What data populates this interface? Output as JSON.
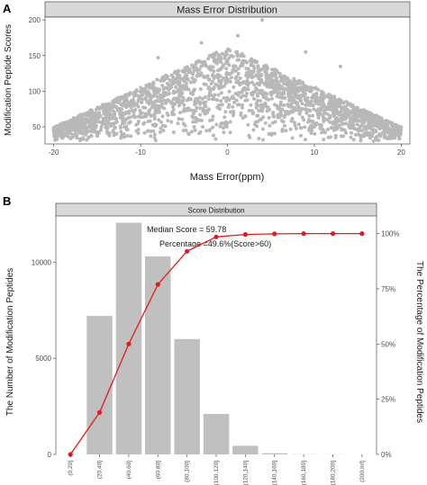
{
  "panels": [
    {
      "letter": "A",
      "strip_title": "Mass Error Distribution"
    },
    {
      "letter": "B",
      "strip_title": "Score Distribution",
      "annotations": [
        "Median Score = 59.78",
        "Percentage =49.6%(Score>60)"
      ]
    }
  ],
  "colors": {
    "points": "#b8b8b8",
    "bars": "#c0c0c0",
    "line": "#e41a1c",
    "strip": "#d9d9d9"
  },
  "chart_data": [
    {
      "type": "scatter",
      "title": "Mass Error Distribution",
      "xlabel": "Mass Error(ppm)",
      "ylabel": "Modification Peptide Scores",
      "xlim": [
        -21,
        21
      ],
      "ylim": [
        26,
        204
      ],
      "xticks": [
        -20,
        -10,
        0,
        10,
        20
      ],
      "yticks": [
        50,
        100,
        150,
        200
      ],
      "grid": false,
      "distribution": {
        "x_range": [
          -20,
          20
        ],
        "y_min": 30,
        "y_max": 200,
        "shape": "triangular envelope, highest scores near 0 ppm",
        "outlier_points": [
          [
            4,
            200
          ],
          [
            1.2,
            178
          ],
          [
            -3,
            168
          ],
          [
            9,
            155
          ],
          [
            -8,
            147
          ],
          [
            13,
            135
          ]
        ]
      }
    },
    {
      "type": "bar",
      "title": "Score Distribution",
      "xlabel": "",
      "ylabel": "The Number of Modification Peptides",
      "y2label": "The Percentage of Modification Peptides",
      "categories": [
        "(0,20]",
        "(20,40]",
        "(40,60]",
        "(60,80]",
        "(80,100]",
        "(100,120]",
        "(120,140]",
        "(140,160]",
        "(160,180]",
        "(180,200]",
        "(200,Inf]"
      ],
      "values": [
        0,
        7200,
        12050,
        10300,
        6000,
        2100,
        450,
        60,
        10,
        5,
        2
      ],
      "ylim": [
        0,
        12400
      ],
      "yticks": [
        0,
        5000,
        10000
      ],
      "series": [
        {
          "type": "line",
          "axis": "secondary",
          "values": [
            0,
            19,
            50,
            77,
            92,
            98.5,
            99.6,
            99.9,
            100,
            100,
            100
          ]
        }
      ],
      "y2lim": [
        0,
        108
      ],
      "y2ticks": [
        "0%",
        "25%",
        "50%",
        "75%",
        "100%"
      ],
      "annotations": [
        "Median Score = 59.78",
        "Percentage =49.6%(Score>60)"
      ],
      "grid": false
    }
  ]
}
